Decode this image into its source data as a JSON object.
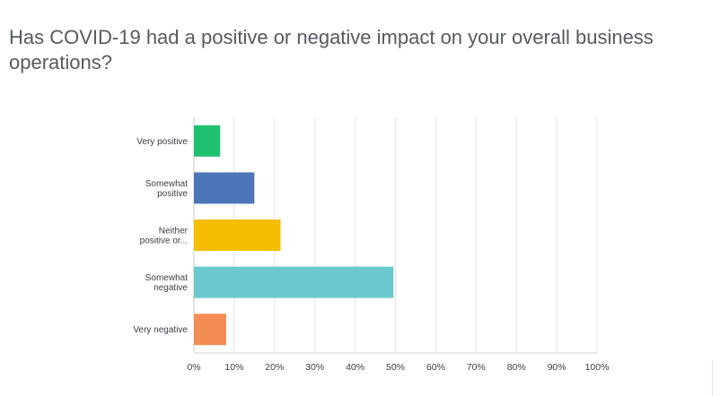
{
  "question": {
    "title": "Has COVID-19 had a positive or negative impact on your overall business operations?"
  },
  "chart_data": {
    "type": "bar",
    "orientation": "horizontal",
    "categories": [
      [
        "Very positive"
      ],
      [
        "Somewhat",
        "positive"
      ],
      [
        "Neither",
        "positive or..."
      ],
      [
        "Somewhat",
        "negative"
      ],
      [
        "Very negative"
      ]
    ],
    "values": [
      6.5,
      15,
      21.5,
      49.5,
      8
    ],
    "colors": [
      "#1ec26e",
      "#4d76b8",
      "#f6be00",
      "#69c9cc",
      "#f48d54"
    ],
    "xlim": [
      0,
      100
    ],
    "ticks": [
      "0%",
      "10%",
      "20%",
      "30%",
      "40%",
      "50%",
      "60%",
      "70%",
      "80%",
      "90%",
      "100%"
    ],
    "tick_values": [
      0,
      10,
      20,
      30,
      40,
      50,
      60,
      70,
      80,
      90,
      100
    ],
    "grid": true,
    "title": "",
    "xlabel": "",
    "ylabel": ""
  }
}
